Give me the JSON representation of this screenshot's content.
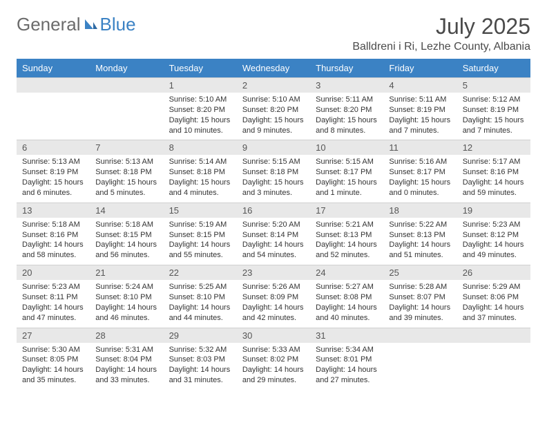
{
  "brand": {
    "general": "General",
    "blue": "Blue"
  },
  "title": "July 2025",
  "location": "Balldreni i Ri, Lezhe County, Albania",
  "colors": {
    "header_bg": "#3b82c4",
    "header_text": "#ffffff",
    "daynum_bg": "#e8e8e8",
    "text": "#333333",
    "logo_blue": "#3b82c4"
  },
  "dayHeaders": [
    "Sunday",
    "Monday",
    "Tuesday",
    "Wednesday",
    "Thursday",
    "Friday",
    "Saturday"
  ],
  "weeks": [
    [
      null,
      null,
      {
        "n": "1",
        "sr": "5:10 AM",
        "ss": "8:20 PM",
        "dl": "15 hours and 10 minutes."
      },
      {
        "n": "2",
        "sr": "5:10 AM",
        "ss": "8:20 PM",
        "dl": "15 hours and 9 minutes."
      },
      {
        "n": "3",
        "sr": "5:11 AM",
        "ss": "8:20 PM",
        "dl": "15 hours and 8 minutes."
      },
      {
        "n": "4",
        "sr": "5:11 AM",
        "ss": "8:19 PM",
        "dl": "15 hours and 7 minutes."
      },
      {
        "n": "5",
        "sr": "5:12 AM",
        "ss": "8:19 PM",
        "dl": "15 hours and 7 minutes."
      }
    ],
    [
      {
        "n": "6",
        "sr": "5:13 AM",
        "ss": "8:19 PM",
        "dl": "15 hours and 6 minutes."
      },
      {
        "n": "7",
        "sr": "5:13 AM",
        "ss": "8:18 PM",
        "dl": "15 hours and 5 minutes."
      },
      {
        "n": "8",
        "sr": "5:14 AM",
        "ss": "8:18 PM",
        "dl": "15 hours and 4 minutes."
      },
      {
        "n": "9",
        "sr": "5:15 AM",
        "ss": "8:18 PM",
        "dl": "15 hours and 3 minutes."
      },
      {
        "n": "10",
        "sr": "5:15 AM",
        "ss": "8:17 PM",
        "dl": "15 hours and 1 minute."
      },
      {
        "n": "11",
        "sr": "5:16 AM",
        "ss": "8:17 PM",
        "dl": "15 hours and 0 minutes."
      },
      {
        "n": "12",
        "sr": "5:17 AM",
        "ss": "8:16 PM",
        "dl": "14 hours and 59 minutes."
      }
    ],
    [
      {
        "n": "13",
        "sr": "5:18 AM",
        "ss": "8:16 PM",
        "dl": "14 hours and 58 minutes."
      },
      {
        "n": "14",
        "sr": "5:18 AM",
        "ss": "8:15 PM",
        "dl": "14 hours and 56 minutes."
      },
      {
        "n": "15",
        "sr": "5:19 AM",
        "ss": "8:15 PM",
        "dl": "14 hours and 55 minutes."
      },
      {
        "n": "16",
        "sr": "5:20 AM",
        "ss": "8:14 PM",
        "dl": "14 hours and 54 minutes."
      },
      {
        "n": "17",
        "sr": "5:21 AM",
        "ss": "8:13 PM",
        "dl": "14 hours and 52 minutes."
      },
      {
        "n": "18",
        "sr": "5:22 AM",
        "ss": "8:13 PM",
        "dl": "14 hours and 51 minutes."
      },
      {
        "n": "19",
        "sr": "5:23 AM",
        "ss": "8:12 PM",
        "dl": "14 hours and 49 minutes."
      }
    ],
    [
      {
        "n": "20",
        "sr": "5:23 AM",
        "ss": "8:11 PM",
        "dl": "14 hours and 47 minutes."
      },
      {
        "n": "21",
        "sr": "5:24 AM",
        "ss": "8:10 PM",
        "dl": "14 hours and 46 minutes."
      },
      {
        "n": "22",
        "sr": "5:25 AM",
        "ss": "8:10 PM",
        "dl": "14 hours and 44 minutes."
      },
      {
        "n": "23",
        "sr": "5:26 AM",
        "ss": "8:09 PM",
        "dl": "14 hours and 42 minutes."
      },
      {
        "n": "24",
        "sr": "5:27 AM",
        "ss": "8:08 PM",
        "dl": "14 hours and 40 minutes."
      },
      {
        "n": "25",
        "sr": "5:28 AM",
        "ss": "8:07 PM",
        "dl": "14 hours and 39 minutes."
      },
      {
        "n": "26",
        "sr": "5:29 AM",
        "ss": "8:06 PM",
        "dl": "14 hours and 37 minutes."
      }
    ],
    [
      {
        "n": "27",
        "sr": "5:30 AM",
        "ss": "8:05 PM",
        "dl": "14 hours and 35 minutes."
      },
      {
        "n": "28",
        "sr": "5:31 AM",
        "ss": "8:04 PM",
        "dl": "14 hours and 33 minutes."
      },
      {
        "n": "29",
        "sr": "5:32 AM",
        "ss": "8:03 PM",
        "dl": "14 hours and 31 minutes."
      },
      {
        "n": "30",
        "sr": "5:33 AM",
        "ss": "8:02 PM",
        "dl": "14 hours and 29 minutes."
      },
      {
        "n": "31",
        "sr": "5:34 AM",
        "ss": "8:01 PM",
        "dl": "14 hours and 27 minutes."
      },
      null,
      null
    ]
  ],
  "labels": {
    "sunrise": "Sunrise: ",
    "sunset": "Sunset: ",
    "daylight": "Daylight: "
  }
}
